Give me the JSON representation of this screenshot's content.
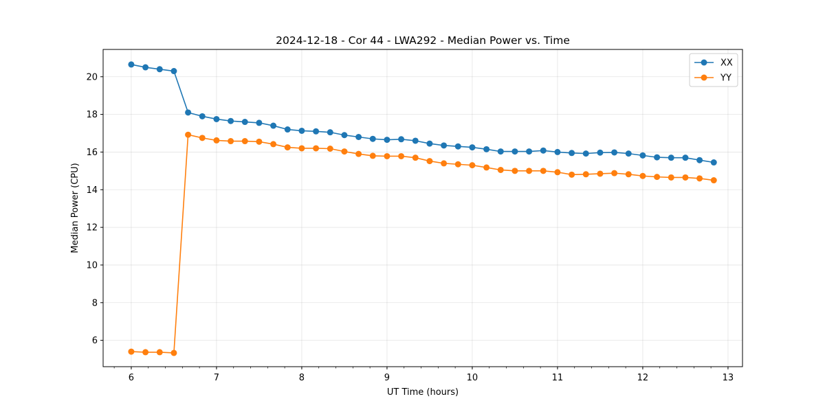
{
  "chart_data": {
    "type": "line",
    "title": "2024-12-18 - Cor 44 - LWA292 - Median Power vs. Time",
    "xlabel": "UT Time (hours)",
    "ylabel": "Median Power (CPU)",
    "xlim": [
      5.67,
      13.17
    ],
    "ylim": [
      4.6,
      21.45
    ],
    "xticks": [
      6,
      7,
      8,
      9,
      10,
      11,
      12,
      13
    ],
    "xtick_labels": [
      "6",
      "7",
      "8",
      "9",
      "10",
      "11",
      "12",
      "13"
    ],
    "yticks": [
      6,
      8,
      10,
      12,
      14,
      16,
      18,
      20
    ],
    "ytick_labels": [
      "6",
      "8",
      "10",
      "12",
      "14",
      "16",
      "18",
      "20"
    ],
    "grid": true,
    "legend_position": "top-right",
    "x": [
      6.0,
      6.1667,
      6.3333,
      6.5,
      6.6667,
      6.8333,
      7.0,
      7.1667,
      7.3333,
      7.5,
      7.6667,
      7.8333,
      8.0,
      8.1667,
      8.3333,
      8.5,
      8.6667,
      8.8333,
      9.0,
      9.1667,
      9.3333,
      9.5,
      9.6667,
      9.8333,
      10.0,
      10.1667,
      10.3333,
      10.5,
      10.6667,
      10.8333,
      11.0,
      11.1667,
      11.3333,
      11.5,
      11.6667,
      11.8333,
      12.0,
      12.1667,
      12.3333,
      12.5,
      12.6667,
      12.8333
    ],
    "series": [
      {
        "name": "XX",
        "color": "#1f77b4",
        "values": [
          20.65,
          20.5,
          20.4,
          20.3,
          18.1,
          17.9,
          17.75,
          17.65,
          17.6,
          17.55,
          17.4,
          17.2,
          17.13,
          17.1,
          17.05,
          16.9,
          16.8,
          16.7,
          16.65,
          16.68,
          16.6,
          16.45,
          16.35,
          16.3,
          16.25,
          16.15,
          16.03,
          16.03,
          16.03,
          16.08,
          16.0,
          15.95,
          15.92,
          15.97,
          15.98,
          15.92,
          15.82,
          15.72,
          15.7,
          15.7,
          15.57,
          15.45
        ]
      },
      {
        "name": "YY",
        "color": "#ff7f0e",
        "values": [
          5.4,
          5.37,
          5.37,
          5.33,
          16.92,
          16.75,
          16.62,
          16.58,
          16.58,
          16.55,
          16.42,
          16.25,
          16.2,
          16.2,
          16.18,
          16.03,
          15.9,
          15.8,
          15.78,
          15.78,
          15.7,
          15.52,
          15.4,
          15.35,
          15.3,
          15.18,
          15.05,
          15.0,
          15.0,
          15.0,
          14.93,
          14.8,
          14.82,
          14.85,
          14.88,
          14.82,
          14.73,
          14.68,
          14.65,
          14.65,
          14.6,
          14.5
        ]
      }
    ]
  }
}
